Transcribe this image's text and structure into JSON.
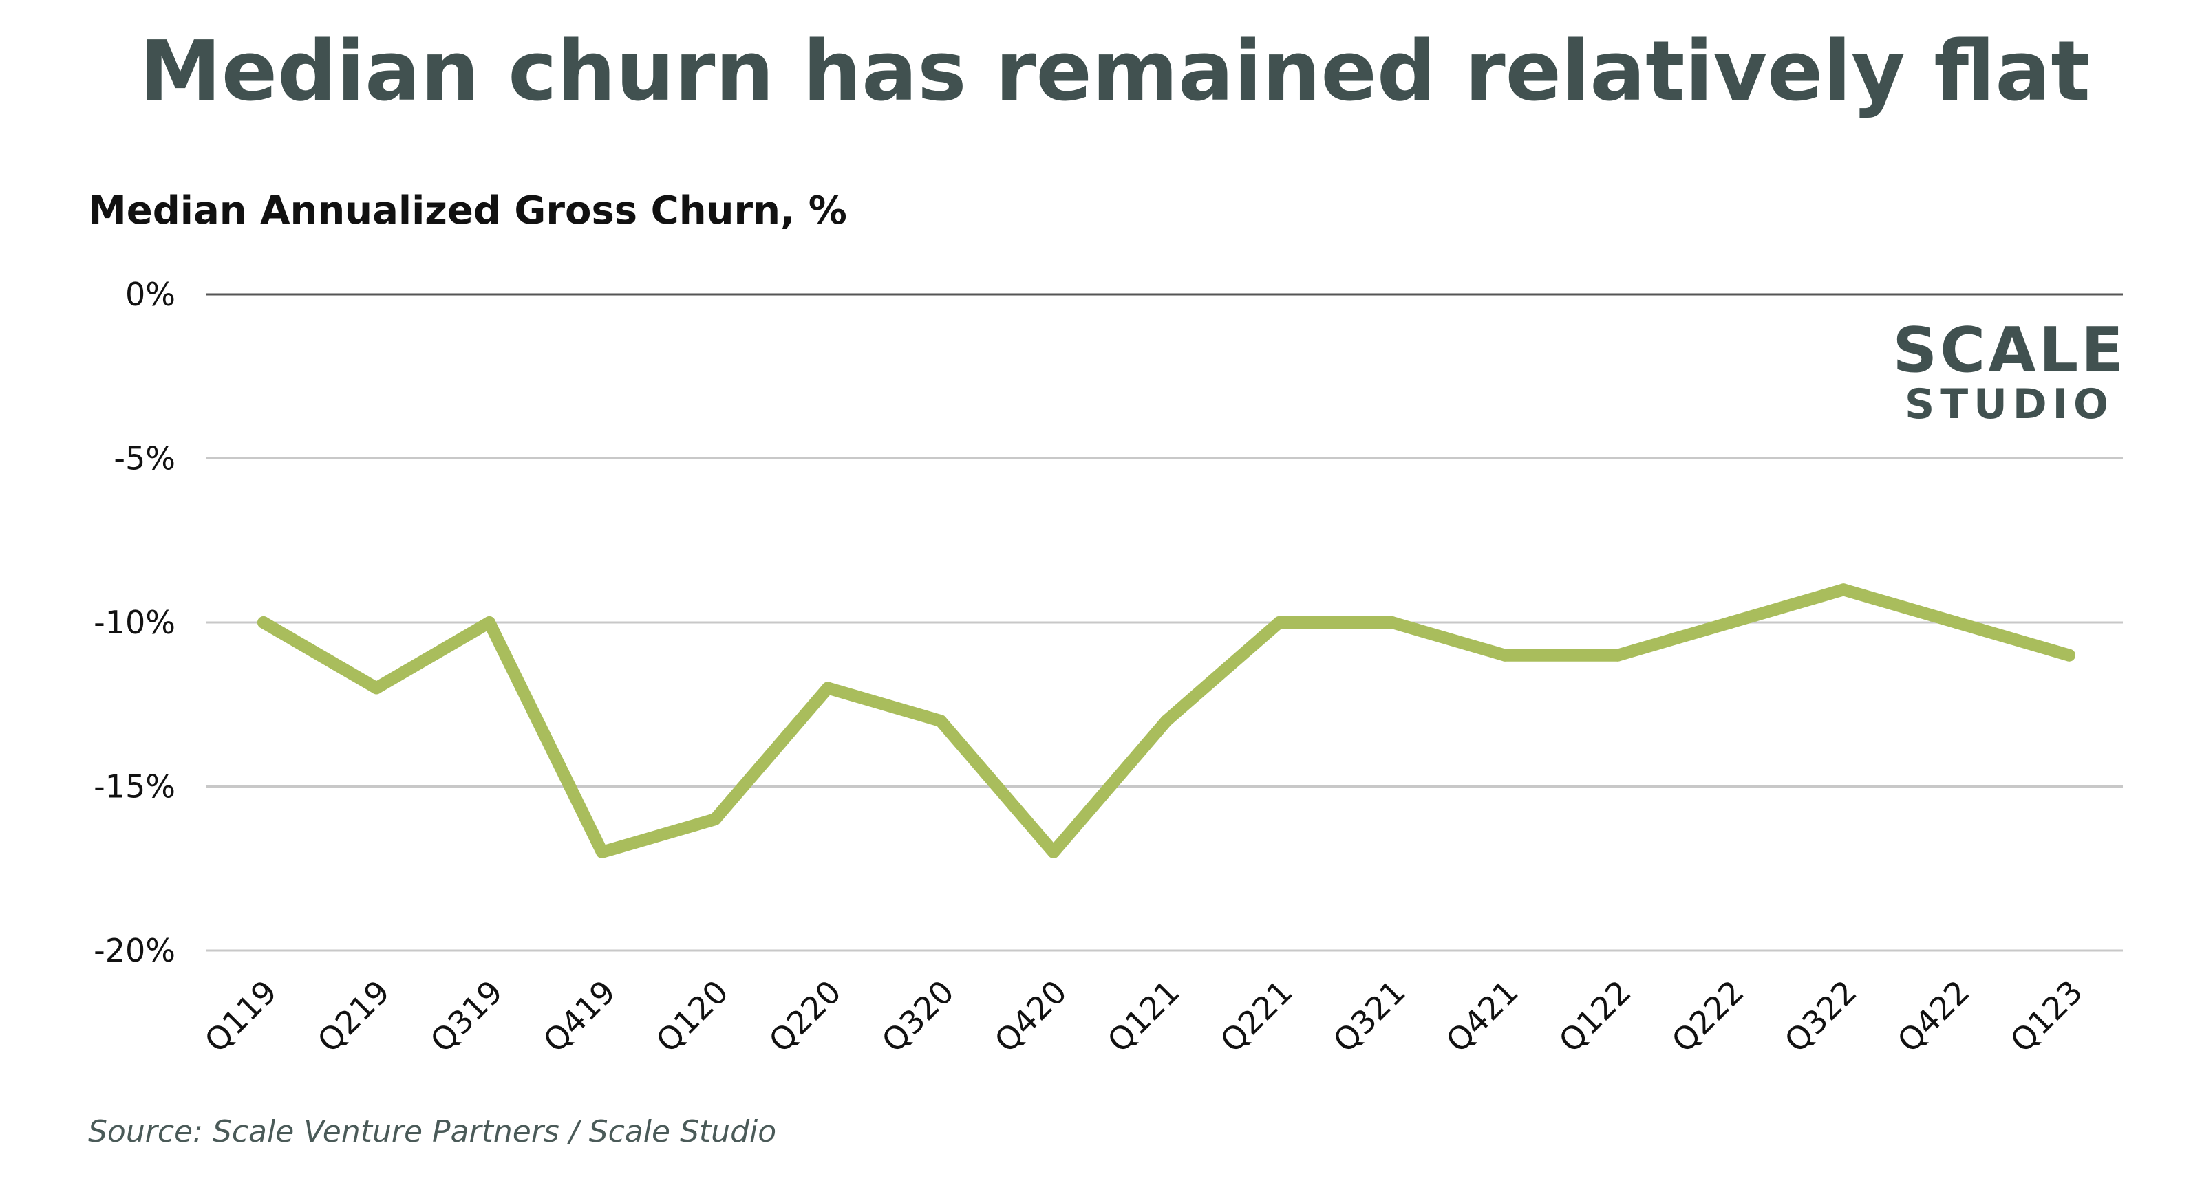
{
  "chart_data": {
    "type": "line",
    "title": "Median churn has remained relatively flat",
    "subtitle": "Median Annualized Gross Churn, %",
    "source": "Source: Scale Venture Partners / Scale Studio",
    "logo": {
      "line1": "SCALE",
      "line2": "STUDIO"
    },
    "categories": [
      "Q119",
      "Q219",
      "Q319",
      "Q419",
      "Q120",
      "Q220",
      "Q320",
      "Q420",
      "Q121",
      "Q221",
      "Q321",
      "Q421",
      "Q122",
      "Q222",
      "Q322",
      "Q422",
      "Q123"
    ],
    "series": [
      {
        "values": [
          -10,
          -12,
          -10,
          -17,
          -16,
          -12,
          -13,
          -17,
          -13,
          -10,
          -10,
          -11,
          -11,
          -10,
          -9,
          -10,
          -11
        ]
      }
    ],
    "ylim": [
      -20,
      0
    ],
    "yticks": [
      0,
      -5,
      -10,
      -15,
      -20
    ],
    "ytick_labels": [
      "0%",
      "-5%",
      "-10%",
      "-15%",
      "-20%"
    ],
    "grid": true,
    "colors": {
      "line": "#a9bd5c",
      "grid": "#c8c8c8",
      "axis": "#555555",
      "title": "#415150"
    }
  }
}
